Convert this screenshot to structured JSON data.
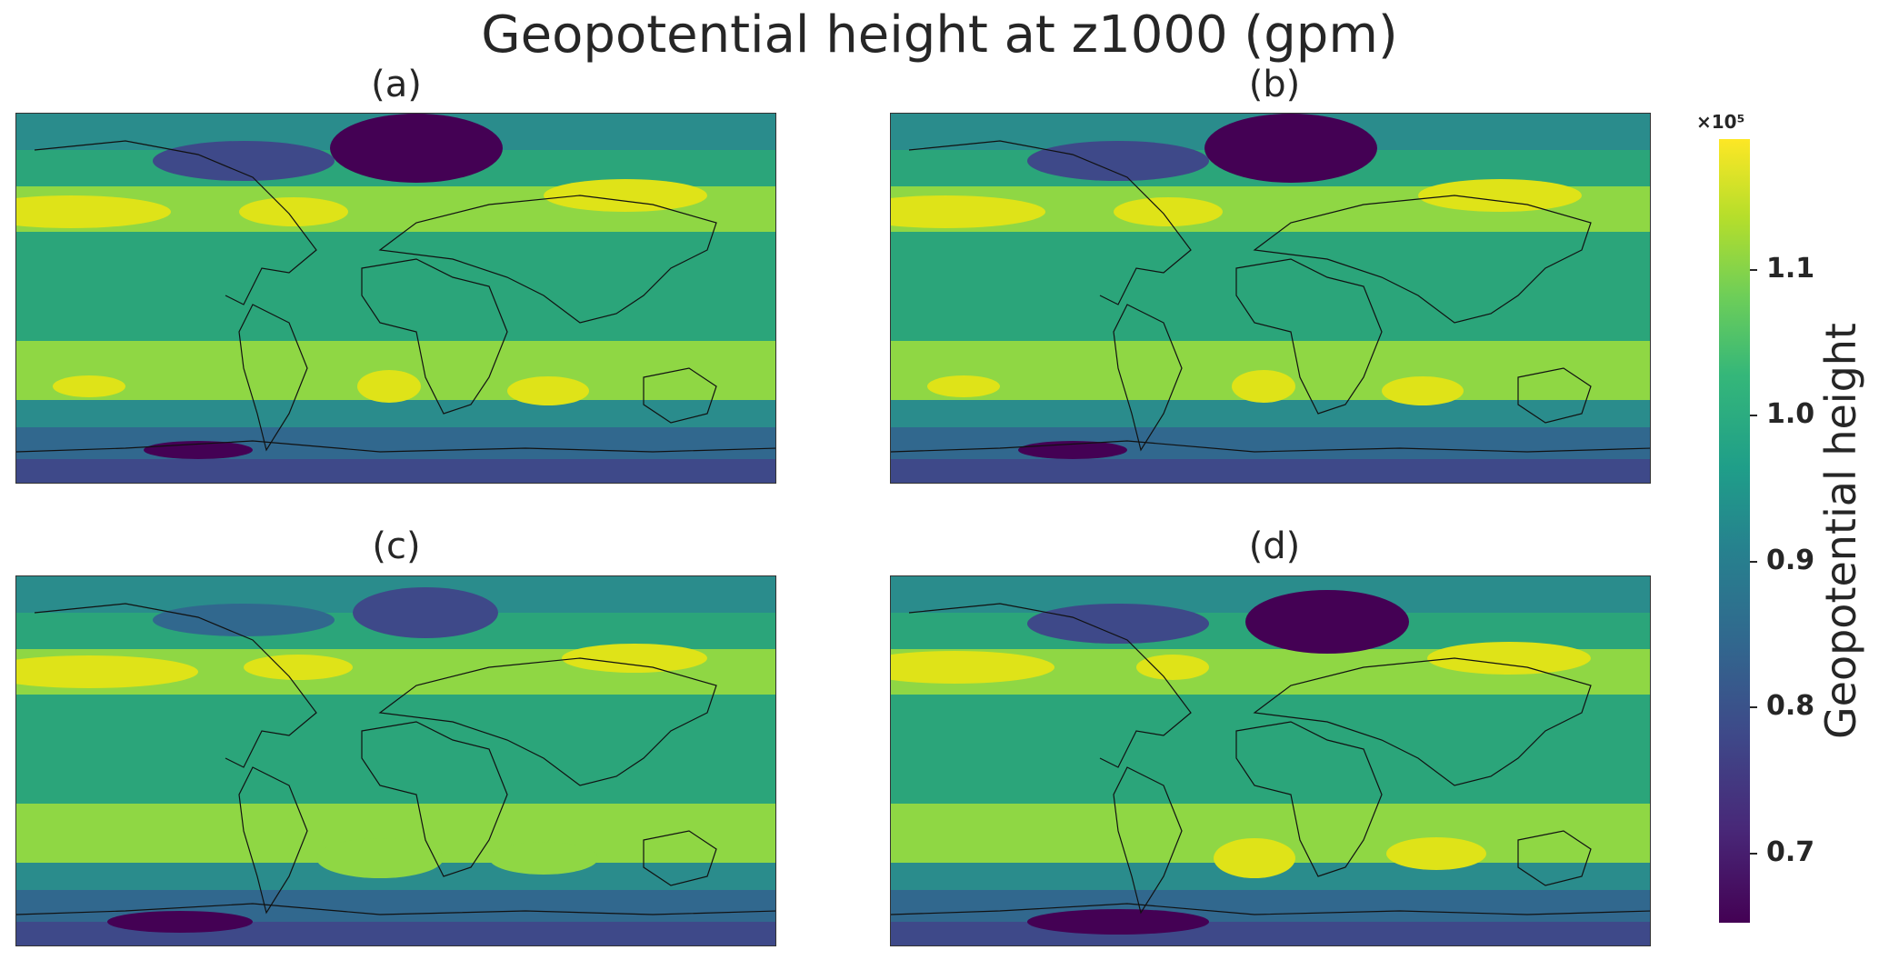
{
  "title": "Geopotential height at z1000 (gpm)",
  "panels": [
    {
      "id": "a",
      "label": "(a)"
    },
    {
      "id": "b",
      "label": "(b)"
    },
    {
      "id": "c",
      "label": "(c)"
    },
    {
      "id": "d",
      "label": "(d)"
    }
  ],
  "colorbar": {
    "label": "Geopotential height",
    "exponent": "×10⁵",
    "ticks": [
      "1.1",
      "1.0",
      "0.9",
      "0.8",
      "0.7"
    ],
    "colormap": "viridis",
    "range": [
      0.65,
      1.19
    ]
  },
  "colors": {
    "low": "#440154",
    "mid_low": "#31688e",
    "mid": "#2ba57a",
    "mid_high": "#8fd744",
    "high": "#dfe318"
  }
}
